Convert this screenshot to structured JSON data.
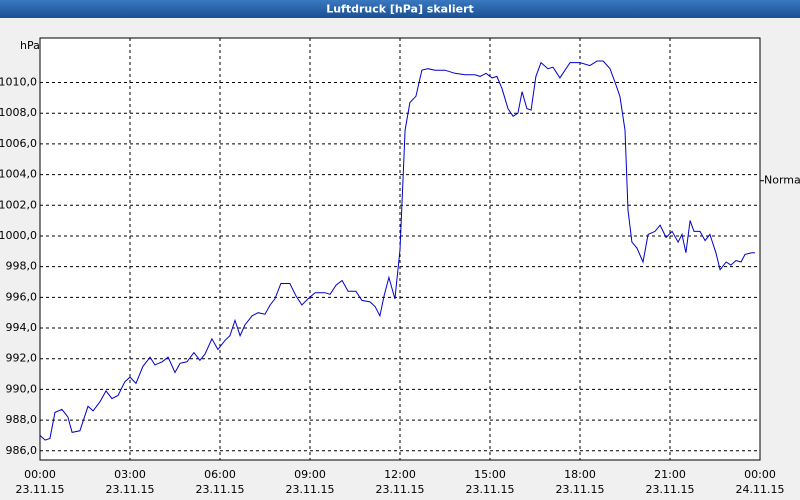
{
  "window_title": "Luftdruck [hPa] skaliert",
  "chart_data": {
    "type": "line",
    "y_label": "hPa",
    "color": "#0000c8",
    "grid": true,
    "reference": {
      "label": "Normal",
      "value": 1003.6
    },
    "xlim": [
      0,
      24
    ],
    "ylim": [
      985.4,
      1012.9
    ],
    "xticks": [
      {
        "value": 0,
        "label": "00:00 23.11.15"
      },
      {
        "value": 3,
        "label": "03:00 23.11.15"
      },
      {
        "value": 6,
        "label": "06:00 23.11.15"
      },
      {
        "value": 9,
        "label": "09:00 23.11.15"
      },
      {
        "value": 12,
        "label": "12:00 23.11.15"
      },
      {
        "value": 15,
        "label": "15:00 23.11.15"
      },
      {
        "value": 18,
        "label": "18:00 23.11.15"
      },
      {
        "value": 21,
        "label": "21:00 23.11.15"
      },
      {
        "value": 24,
        "label": "00:00 24.11.15"
      }
    ],
    "yticks": [
      {
        "value": 986,
        "label": "986,0"
      },
      {
        "value": 988,
        "label": "988,0"
      },
      {
        "value": 990,
        "label": "990,0"
      },
      {
        "value": 992,
        "label": "992,0"
      },
      {
        "value": 994,
        "label": "994,0"
      },
      {
        "value": 996,
        "label": "996,0"
      },
      {
        "value": 998,
        "label": "998,0"
      },
      {
        "value": 1000,
        "label": "1000,0"
      },
      {
        "value": 1002,
        "label": "1002,0"
      },
      {
        "value": 1004,
        "label": "1004,0"
      },
      {
        "value": 1006,
        "label": "1006,0"
      },
      {
        "value": 1008,
        "label": "1008,0"
      },
      {
        "value": 1010,
        "label": "1010,0"
      }
    ],
    "x": [
      0,
      0.17,
      0.33,
      0.5,
      0.73,
      0.93,
      1.07,
      1.33,
      1.6,
      1.77,
      2,
      2.2,
      2.4,
      2.6,
      2.83,
      3,
      3.2,
      3.43,
      3.67,
      3.83,
      4.07,
      4.27,
      4.5,
      4.67,
      4.9,
      5.13,
      5.33,
      5.5,
      5.73,
      5.93,
      6.17,
      6.33,
      6.5,
      6.67,
      6.83,
      7.07,
      7.27,
      7.5,
      7.67,
      7.83,
      8.03,
      8.33,
      8.53,
      8.73,
      8.93,
      9.17,
      9.5,
      9.67,
      9.87,
      10.07,
      10.27,
      10.53,
      10.73,
      11,
      11.17,
      11.33,
      11.47,
      11.63,
      11.83,
      12,
      12.17,
      12.33,
      12.53,
      12.73,
      12.93,
      13.17,
      13.5,
      13.83,
      14.17,
      14.5,
      14.67,
      14.87,
      15.07,
      15.23,
      15.4,
      15.6,
      15.77,
      15.93,
      16.07,
      16.23,
      16.37,
      16.53,
      16.7,
      16.93,
      17.1,
      17.33,
      17.5,
      17.67,
      18,
      18.33,
      18.57,
      18.77,
      19,
      19.17,
      19.33,
      19.5,
      19.6,
      19.73,
      19.9,
      20.1,
      20.27,
      20.5,
      20.67,
      20.87,
      21.07,
      21.27,
      21.4,
      21.53,
      21.67,
      21.8,
      22,
      22.17,
      22.33,
      22.53,
      22.67,
      22.87,
      23.03,
      23.2,
      23.37,
      23.5,
      23.73,
      23.83
    ],
    "values": [
      987.0,
      986.7,
      986.8,
      988.5,
      988.7,
      988.2,
      987.2,
      987.3,
      988.9,
      988.6,
      989.2,
      989.9,
      989.4,
      989.6,
      990.5,
      990.8,
      990.4,
      991.5,
      992.1,
      991.6,
      991.8,
      992.1,
      991.1,
      991.7,
      991.8,
      992.4,
      991.9,
      992.3,
      993.3,
      992.6,
      993.2,
      993.5,
      994.5,
      993.5,
      994.2,
      994.8,
      995.0,
      994.9,
      995.5,
      995.9,
      996.9,
      996.9,
      996.1,
      995.5,
      995.9,
      996.3,
      996.3,
      996.2,
      996.8,
      997.1,
      996.4,
      996.4,
      995.8,
      995.7,
      995.4,
      994.8,
      996.1,
      997.3,
      995.9,
      999.1,
      1006.9,
      1008.7,
      1009.1,
      1010.8,
      1010.9,
      1010.8,
      1010.8,
      1010.6,
      1010.5,
      1010.5,
      1010.4,
      1010.6,
      1010.3,
      1010.4,
      1009.6,
      1008.3,
      1007.8,
      1008.0,
      1009.4,
      1008.3,
      1008.2,
      1010.4,
      1011.3,
      1010.9,
      1011.0,
      1010.3,
      1010.8,
      1011.3,
      1011.3,
      1011.1,
      1011.4,
      1011.4,
      1010.9,
      1010.0,
      1009.1,
      1006.9,
      1001.7,
      999.6,
      999.2,
      998.3,
      1000.1,
      1000.3,
      1000.7,
      999.9,
      1000.3,
      999.6,
      1000.1,
      998.9,
      1001.0,
      1000.3,
      1000.3,
      999.7,
      1000.1,
      998.9,
      997.8,
      998.3,
      998.1,
      998.4,
      998.3,
      998.8,
      998.9,
      998.9
    ]
  }
}
